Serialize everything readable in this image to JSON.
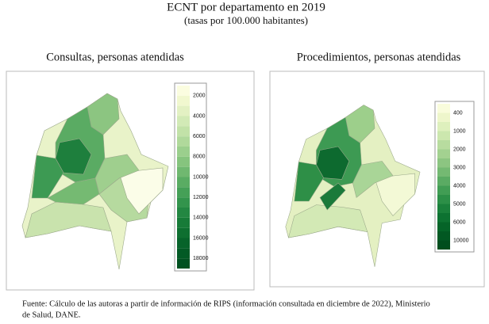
{
  "header": {
    "title": "ECNT por departamento en 2019",
    "subtitle": "(tasas por 100.000 habitantes)"
  },
  "maps": [
    {
      "title": "Consultas, personas atendidas",
      "legend": {
        "labels": [
          "2000",
          "4000",
          "6000",
          "8000",
          "10000",
          "12000",
          "14000",
          "16000",
          "18000"
        ],
        "colors": [
          "#fbfde0",
          "#f1f8cf",
          "#e3f1c3",
          "#d2eab6",
          "#c2e2a8",
          "#b0d99b",
          "#9bcf8d",
          "#86c47e",
          "#70b870",
          "#5aac63",
          "#45a057",
          "#33944c",
          "#238742",
          "#177b38",
          "#0e6f30",
          "#07632a",
          "#035a25",
          "#005120"
        ]
      }
    },
    {
      "title": "Procedimientos, personas atendidas",
      "legend": {
        "labels": [
          "400",
          "1000",
          "2000",
          "3000",
          "4000",
          "5000",
          "6000",
          "10000"
        ],
        "colors": [
          "#f9fcdc",
          "#eef6cb",
          "#def0bd",
          "#cce7ae",
          "#b8dc9f",
          "#a3d190",
          "#8cc581",
          "#74b972",
          "#5aab63",
          "#419d54",
          "#2c8f47",
          "#1a803b",
          "#0d7231",
          "#056428",
          "#025822",
          "#004d1d"
        ]
      }
    }
  ],
  "footnote": {
    "line1": "Fuente: Cálculo de las autoras a partir de información de RIPS (información consultada en diciembre de 2022), Ministerio",
    "line2": "de Salud, DANE."
  }
}
